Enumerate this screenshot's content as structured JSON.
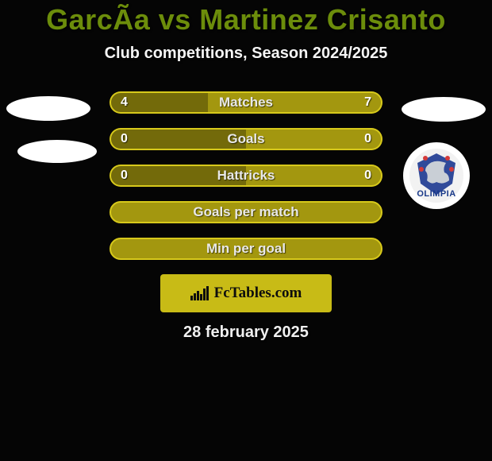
{
  "title": "GarcÃ­a vs Martinez Crisanto",
  "subtitle": "Club competitions, Season 2024/2025",
  "accent_color": "#a3970f",
  "dark_accent": "#736a0a",
  "border_accent": "#d7c91b",
  "bg_color": "#050505",
  "brand_bg": "#c8bb16",
  "rows": [
    {
      "label": "Matches",
      "left": "4",
      "right": "7",
      "left_pct": 36,
      "right_pct": 64,
      "split": true
    },
    {
      "label": "Goals",
      "left": "0",
      "right": "0",
      "left_pct": 50,
      "right_pct": 50,
      "split": true
    },
    {
      "label": "Hattricks",
      "left": "0",
      "right": "0",
      "left_pct": 50,
      "right_pct": 50,
      "split": true
    },
    {
      "label": "Goals per match",
      "empty": true
    },
    {
      "label": "Min per goal",
      "empty": true
    }
  ],
  "brand_text": "FcTables.com",
  "date_text": "28 february 2025",
  "right_club_text": "OLIMPIA"
}
